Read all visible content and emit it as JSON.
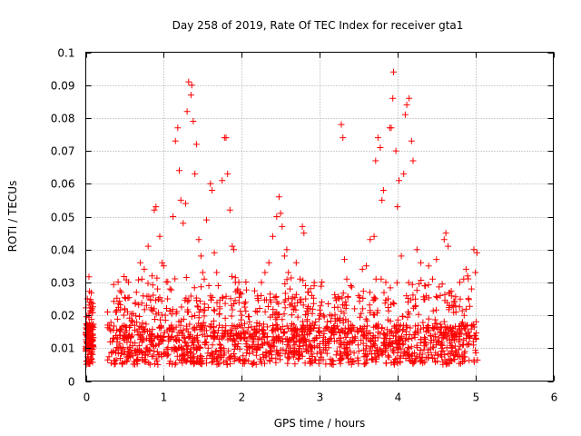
{
  "chart_data": {
    "type": "scatter",
    "title": "Day 258 of 2019, Rate Of TEC Index for receiver gta1",
    "xlabel": "GPS time / hours",
    "ylabel": "ROTI / TECUs",
    "xlim": [
      0,
      6
    ],
    "ylim": [
      0,
      0.1
    ],
    "xticks": [
      "0",
      "1",
      "2",
      "3",
      "4",
      "5",
      "6"
    ],
    "yticks": [
      "0",
      "0.01",
      "0.02",
      "0.03",
      "0.04",
      "0.05",
      "0.06",
      "0.07",
      "0.08",
      "0.09",
      "0.1"
    ],
    "grid": true,
    "marker": "+",
    "color": "#ff0000",
    "series": [
      {
        "name": "gta1 ROTI",
        "x": [
          0.0,
          0.02,
          0.05,
          0.08,
          0.03,
          0.06,
          0.04,
          0.07,
          0.01,
          0.09,
          0.28,
          0.3,
          0.35,
          0.4,
          0.45,
          0.5,
          0.55,
          0.6,
          0.65,
          0.7,
          0.72,
          0.75,
          0.78,
          0.8,
          0.85,
          0.88,
          0.9,
          0.92,
          0.95,
          0.98,
          1.0,
          1.02,
          1.05,
          1.08,
          1.1,
          1.12,
          1.15,
          1.18,
          1.2,
          1.22,
          1.25,
          1.28,
          1.3,
          1.32,
          1.35,
          1.36,
          1.38,
          1.4,
          1.42,
          1.45,
          1.48,
          1.5,
          1.52,
          1.55,
          1.58,
          1.6,
          1.62,
          1.65,
          1.68,
          1.7,
          1.72,
          1.75,
          1.78,
          1.8,
          1.82,
          1.85,
          1.88,
          1.9,
          1.92,
          1.95,
          1.98,
          2.0,
          2.05,
          2.1,
          2.15,
          2.2,
          2.25,
          2.3,
          2.35,
          2.4,
          2.45,
          2.48,
          2.5,
          2.52,
          2.55,
          2.58,
          2.6,
          2.62,
          2.65,
          2.7,
          2.75,
          2.78,
          2.8,
          2.82,
          2.85,
          2.88,
          2.9,
          2.95,
          3.0,
          3.05,
          3.1,
          3.15,
          3.2,
          3.25,
          3.28,
          3.3,
          3.32,
          3.35,
          3.4,
          3.45,
          3.5,
          3.55,
          3.6,
          3.65,
          3.7,
          3.72,
          3.75,
          3.78,
          3.8,
          3.82,
          3.85,
          3.88,
          3.9,
          3.92,
          3.94,
          3.95,
          3.98,
          4.0,
          4.02,
          4.05,
          4.08,
          4.1,
          4.12,
          4.15,
          4.18,
          4.2,
          4.25,
          4.3,
          4.35,
          4.4,
          4.45,
          4.5,
          4.55,
          4.6,
          4.62,
          4.65,
          4.7,
          4.75,
          4.8,
          4.85,
          4.88,
          4.9,
          4.95,
          4.98,
          5.0,
          5.02
        ],
        "y": [
          0.01,
          0.025,
          0.024,
          0.012,
          0.008,
          0.015,
          0.02,
          0.007,
          0.006,
          0.011,
          0.021,
          0.017,
          0.013,
          0.012,
          0.01,
          0.022,
          0.013,
          0.018,
          0.027,
          0.036,
          0.031,
          0.034,
          0.023,
          0.041,
          0.032,
          0.052,
          0.053,
          0.028,
          0.044,
          0.036,
          0.035,
          0.02,
          0.025,
          0.028,
          0.017,
          0.05,
          0.073,
          0.077,
          0.064,
          0.055,
          0.048,
          0.054,
          0.082,
          0.091,
          0.087,
          0.09,
          0.079,
          0.063,
          0.072,
          0.043,
          0.038,
          0.033,
          0.031,
          0.049,
          0.029,
          0.06,
          0.058,
          0.039,
          0.033,
          0.029,
          0.022,
          0.061,
          0.074,
          0.074,
          0.063,
          0.052,
          0.041,
          0.04,
          0.03,
          0.028,
          0.027,
          0.02,
          0.024,
          0.018,
          0.014,
          0.021,
          0.026,
          0.033,
          0.036,
          0.044,
          0.05,
          0.056,
          0.051,
          0.047,
          0.038,
          0.04,
          0.033,
          0.028,
          0.025,
          0.036,
          0.031,
          0.047,
          0.045,
          0.029,
          0.027,
          0.022,
          0.026,
          0.018,
          0.015,
          0.02,
          0.018,
          0.013,
          0.019,
          0.025,
          0.078,
          0.074,
          0.037,
          0.031,
          0.029,
          0.022,
          0.026,
          0.034,
          0.035,
          0.043,
          0.044,
          0.067,
          0.074,
          0.071,
          0.055,
          0.058,
          0.03,
          0.025,
          0.077,
          0.077,
          0.086,
          0.094,
          0.07,
          0.053,
          0.061,
          0.038,
          0.063,
          0.081,
          0.084,
          0.086,
          0.073,
          0.067,
          0.04,
          0.036,
          0.029,
          0.035,
          0.031,
          0.037,
          0.026,
          0.043,
          0.045,
          0.041,
          0.023,
          0.021,
          0.03,
          0.031,
          0.034,
          0.032,
          0.028,
          0.04,
          0.033,
          0.039
        ]
      }
    ]
  }
}
